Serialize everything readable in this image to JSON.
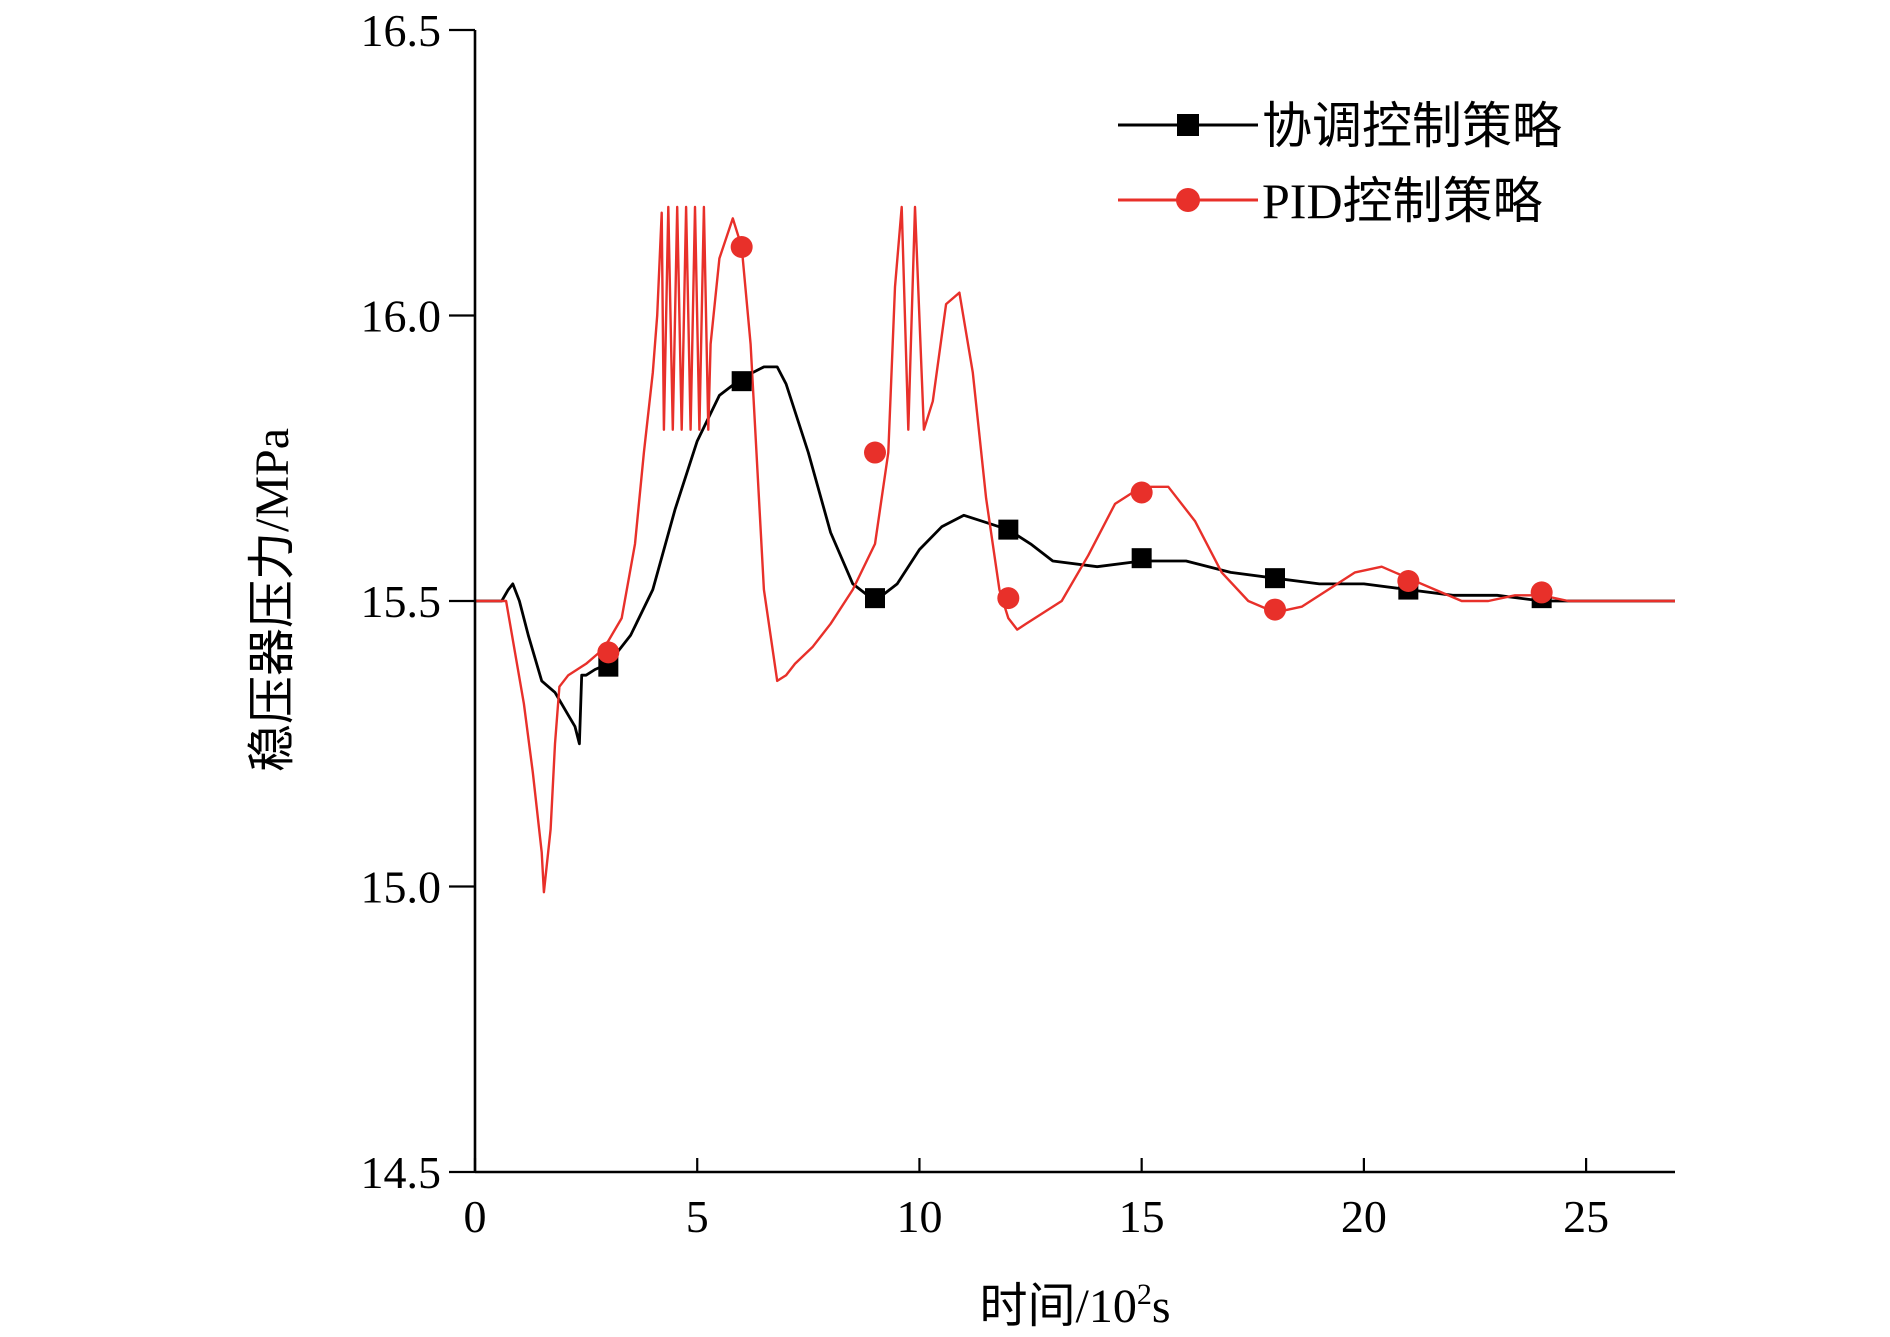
{
  "chart_data": {
    "type": "line",
    "xlabel_main": "时间/10",
    "xlabel_sup": "2",
    "xlabel_unit": "s",
    "ylabel": "稳压器压力/MPa",
    "xlim": [
      0,
      27
    ],
    "ylim": [
      14.5,
      16.5
    ],
    "x_ticks": [
      0,
      5,
      10,
      15,
      20,
      25
    ],
    "x_tick_labels": [
      "0",
      "5",
      "10",
      "15",
      "20",
      "25"
    ],
    "y_ticks": [
      14.5,
      15.0,
      15.5,
      16.0,
      16.5
    ],
    "y_tick_labels": [
      "14.5",
      "15.0",
      "15.5",
      "16.0",
      "16.5"
    ],
    "legend_position": "top-right",
    "series": [
      {
        "name": "协调控制策略",
        "color": "#000000",
        "marker": "square",
        "x": [
          0,
          0.6,
          0.75,
          0.85,
          1.0,
          1.2,
          1.5,
          1.8,
          2.1,
          2.25,
          2.35,
          2.4,
          2.5,
          2.7,
          3.0,
          3.5,
          4.0,
          4.5,
          5.0,
          5.5,
          6.0,
          6.5,
          6.8,
          7.0,
          7.5,
          8.0,
          8.5,
          9.0,
          9.5,
          10.0,
          10.5,
          11.0,
          11.4,
          11.8,
          12.1,
          12.5,
          13.0,
          14.0,
          15.0,
          16.0,
          17.0,
          18.0,
          19.0,
          20.0,
          21.0,
          22.0,
          23.0,
          24.0,
          25.0,
          26.0,
          27.0
        ],
        "y": [
          15.5,
          15.5,
          15.52,
          15.53,
          15.5,
          15.44,
          15.36,
          15.34,
          15.3,
          15.28,
          15.25,
          15.37,
          15.37,
          15.38,
          15.39,
          15.44,
          15.52,
          15.66,
          15.78,
          15.86,
          15.89,
          15.91,
          15.91,
          15.88,
          15.76,
          15.62,
          15.53,
          15.5,
          15.53,
          15.59,
          15.63,
          15.65,
          15.64,
          15.63,
          15.62,
          15.6,
          15.57,
          15.56,
          15.57,
          15.57,
          15.55,
          15.54,
          15.53,
          15.53,
          15.52,
          15.51,
          15.51,
          15.5,
          15.5,
          15.5,
          15.5
        ],
        "markers_x": [
          3.0,
          6.0,
          9.0,
          12.0,
          15.0,
          18.0,
          21.0,
          24.0
        ],
        "markers_y": [
          15.385,
          15.885,
          15.505,
          15.625,
          15.575,
          15.54,
          15.52,
          15.505
        ]
      },
      {
        "name": "PID控制策略",
        "color": "#e8302a",
        "marker": "circle",
        "x": [
          0,
          0.7,
          0.9,
          1.1,
          1.3,
          1.5,
          1.55,
          1.7,
          1.8,
          1.9,
          2.1,
          2.3,
          2.5,
          2.8,
          3.0,
          3.3,
          3.6,
          3.8,
          4.0,
          4.1,
          4.2,
          4.25,
          4.35,
          4.45,
          4.55,
          4.65,
          4.75,
          4.85,
          4.95,
          5.05,
          5.15,
          5.25,
          5.3,
          5.5,
          5.8,
          6.0,
          6.2,
          6.5,
          6.8,
          7.0,
          7.2,
          7.6,
          8.0,
          8.5,
          9.0,
          9.3,
          9.45,
          9.6,
          9.75,
          9.9,
          10.1,
          10.3,
          10.6,
          10.9,
          11.2,
          11.5,
          11.8,
          12.0,
          12.2,
          12.4,
          12.8,
          13.2,
          13.8,
          14.4,
          15.0,
          15.6,
          16.2,
          16.8,
          17.4,
          18.0,
          18.6,
          19.2,
          19.8,
          20.4,
          21.0,
          21.6,
          22.2,
          22.8,
          23.4,
          24.0,
          24.6,
          25.2,
          25.8,
          26.4,
          27.0
        ],
        "y": [
          15.5,
          15.5,
          15.41,
          15.32,
          15.2,
          15.06,
          14.99,
          15.1,
          15.25,
          15.35,
          15.37,
          15.38,
          15.39,
          15.41,
          15.43,
          15.47,
          15.6,
          15.76,
          15.9,
          16.0,
          16.18,
          15.8,
          16.19,
          15.8,
          16.19,
          15.8,
          16.19,
          15.8,
          16.19,
          15.8,
          16.19,
          15.8,
          15.95,
          16.1,
          16.17,
          16.12,
          15.95,
          15.52,
          15.36,
          15.37,
          15.39,
          15.42,
          15.46,
          15.52,
          15.6,
          15.76,
          16.05,
          16.19,
          15.8,
          16.19,
          15.8,
          15.85,
          16.02,
          16.04,
          15.9,
          15.68,
          15.52,
          15.47,
          15.45,
          15.46,
          15.48,
          15.5,
          15.58,
          15.67,
          15.7,
          15.7,
          15.64,
          15.55,
          15.5,
          15.48,
          15.49,
          15.52,
          15.55,
          15.56,
          15.54,
          15.52,
          15.5,
          15.5,
          15.51,
          15.51,
          15.5,
          15.5,
          15.5,
          15.5,
          15.5
        ],
        "markers_x": [
          3.0,
          6.0,
          9.0,
          12.0,
          15.0,
          18.0,
          21.0,
          24.0
        ],
        "markers_y": [
          15.41,
          16.12,
          15.76,
          15.505,
          15.69,
          15.485,
          15.535,
          15.515
        ]
      }
    ]
  }
}
